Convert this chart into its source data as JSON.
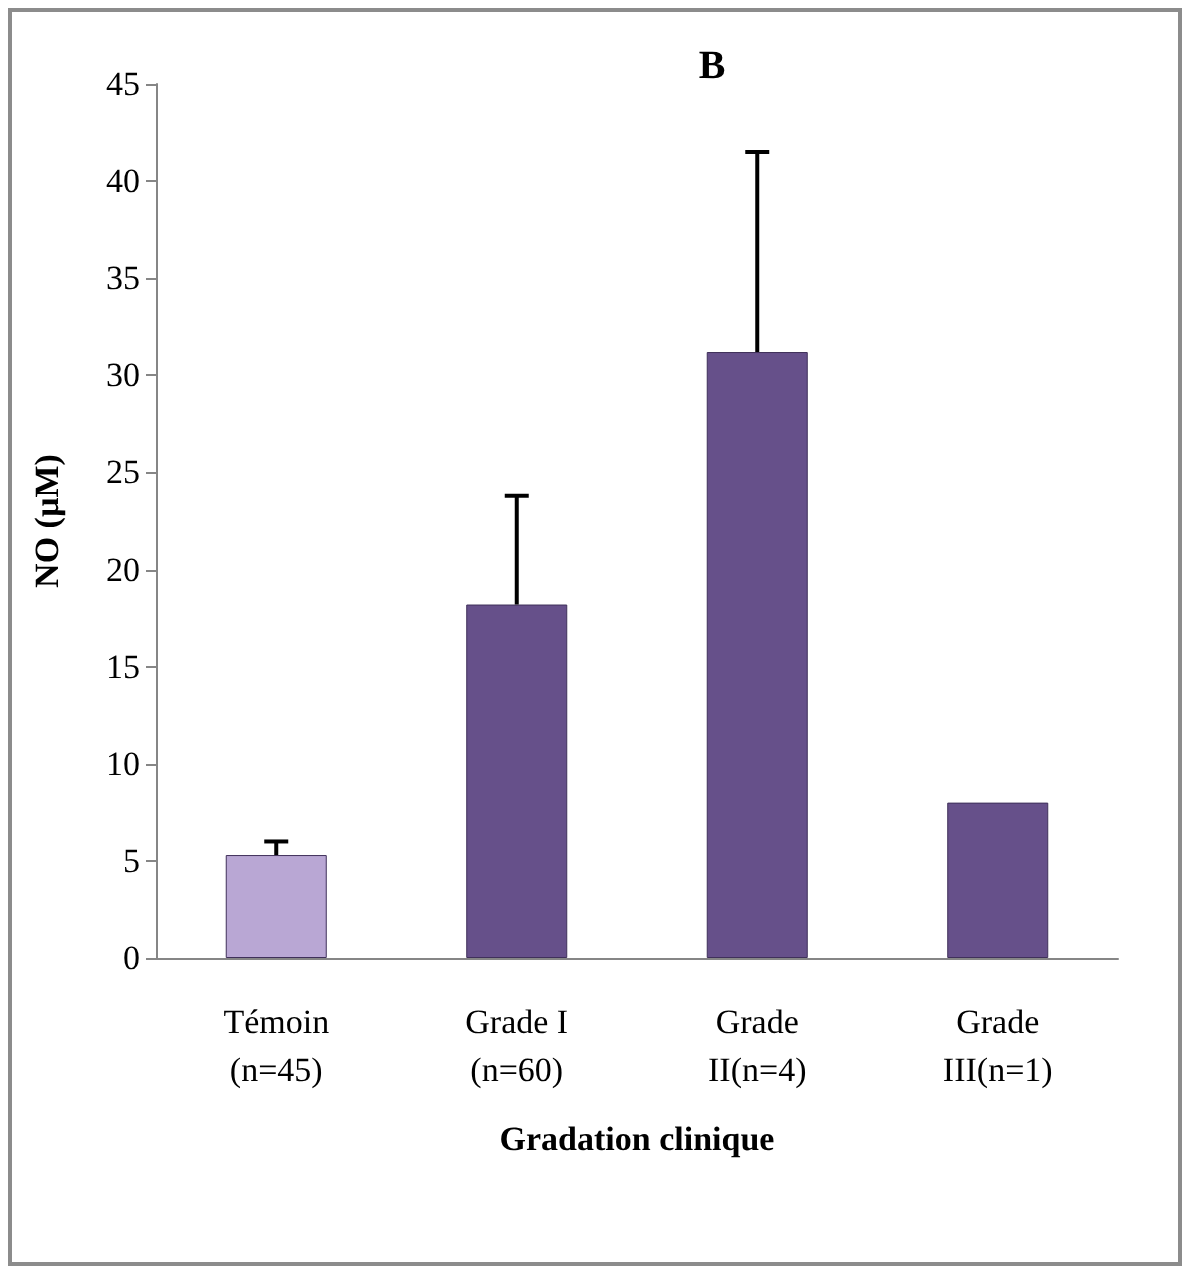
{
  "chart_data": {
    "type": "bar",
    "title": "B",
    "xlabel": "Gradation clinique",
    "ylabel": "NO (µM)",
    "categories": [
      "Témoin\n(n=45)",
      "Grade I\n(n=60)",
      "Grade\nII(n=4)",
      "Grade\nIII(n=1)"
    ],
    "values": [
      5.3,
      18.2,
      31.2,
      8.0
    ],
    "colors": [
      "#b9a7d4",
      "#66508a",
      "#66508a",
      "#66508a"
    ],
    "errors": [
      [
        5.3,
        6.0
      ],
      [
        18.2,
        23.8
      ],
      [
        31.2,
        41.5
      ],
      null
    ],
    "ylim": [
      0,
      45
    ],
    "yticks": [
      0,
      5,
      10,
      15,
      20,
      25,
      30,
      35,
      40,
      45
    ],
    "grid": false
  }
}
